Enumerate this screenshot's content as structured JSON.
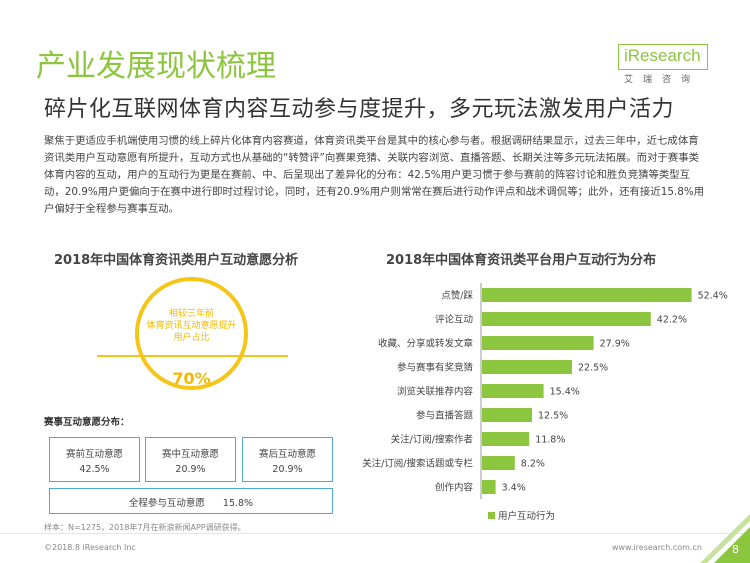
{
  "header": {
    "title": "产业发展现状梳理",
    "subtitle": "碎片化互联网体育内容互动参与度提升，多元玩法激发用户活力",
    "logo_name": "iResearch",
    "logo_cn": "艾瑞咨询"
  },
  "intro": "聚焦于更适应手机端使用习惯的线上碎片化体育内容赛道，体育资讯类平台是其中的核心参与者。根据调研结果显示，过去三年中，近七成体育资讯类用户互动意愿有所提升，互动方式也从基础的“转赞评”向赛果竞猜、关联内容浏览、直播答题、长期关注等多元玩法拓展。而对于赛事类体育内容的互动，用户的互动行为更是在赛前、中、后呈现出了差异化的分布：42.5%用户更习惯于参与赛前的阵容讨论和胜负竞猜等类型互动，20.9%用户更偏向于在赛中进行即时过程讨论，同时，还有20.9%用户则常常在赛后进行动作评点和战术调侃等；此外，还有接近15.8%用户偏好于全程参与赛事互动。",
  "left_panel": {
    "title": "2018年中国体育资讯类用户互动意愿分析",
    "circle_text": [
      "相较三年前",
      "体育资讯互动意愿提升",
      "用户占比"
    ],
    "circle_value": "70%",
    "dist_title": "赛事互动意愿分布：",
    "boxes": [
      {
        "label": "赛前互动意愿",
        "value": "42.5%"
      },
      {
        "label": "赛中互动意愿",
        "value": "20.9%"
      },
      {
        "label": "赛后互动意愿",
        "value": "20.9%"
      }
    ],
    "full_box": {
      "label": "全程参与互动意愿",
      "value": "15.8%"
    }
  },
  "chart_data": {
    "type": "bar",
    "orientation": "horizontal",
    "title": "2018年中国体育资讯类平台用户互动行为分布",
    "categories": [
      "点赞/踩",
      "评论互动",
      "收藏、分享或转发文章",
      "参与赛事有奖竞猜",
      "浏览关联推荐内容",
      "参与直播答题",
      "关注/订阅/搜索作者",
      "关注/订阅/搜索话题或专栏",
      "创作内容"
    ],
    "series": [
      {
        "name": "用户互动行为",
        "values": [
          52.4,
          42.2,
          27.9,
          22.5,
          15.4,
          12.5,
          11.8,
          8.2,
          3.4
        ]
      }
    ],
    "value_labels": [
      "52.4%",
      "42.2%",
      "27.9%",
      "22.5%",
      "15.4%",
      "12.5%",
      "11.8%",
      "8.2%",
      "3.4%"
    ],
    "xlim": [
      0,
      60
    ],
    "grid": false,
    "legend_position": "bottom",
    "bar_color": "#8cc63f"
  },
  "footer": {
    "note": "样本：N=1275，2018年7月在新浪新闻APP调研获得。",
    "copyright": "©2018.8 iResearch Inc",
    "website": "www.iresearch.com.cn",
    "page": "8"
  },
  "colors": {
    "accent_green": "#8cc63f",
    "highlight_yellow": "#f5c518",
    "box_blue": "#4fa8d8"
  }
}
